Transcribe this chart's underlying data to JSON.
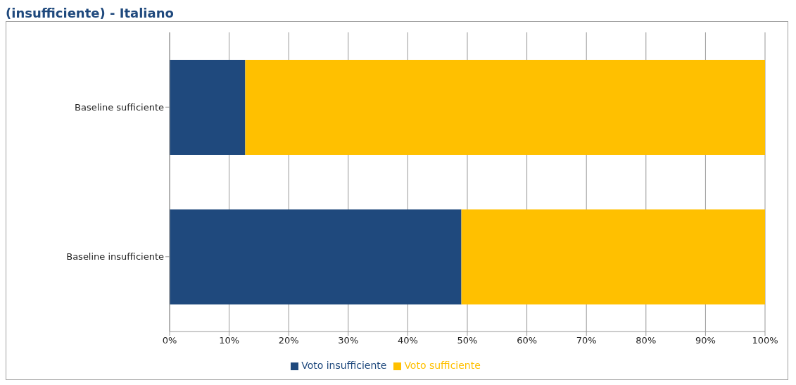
{
  "chart_data": {
    "type": "bar",
    "title": "(insufficiente) - Italiano",
    "orientation": "horizontal",
    "stacked": true,
    "categories": [
      "Baseline sufficiente",
      "Baseline insufficiente"
    ],
    "series": [
      {
        "name": "Voto insufficiente",
        "color": "#1f497d",
        "values": [
          12.7,
          49
        ]
      },
      {
        "name": "Voto sufficiente",
        "color": "#ffc000",
        "values": [
          87.3,
          51
        ]
      }
    ],
    "xlim": [
      0,
      100
    ],
    "xticks": [
      {
        "value": 0,
        "label": "0%"
      },
      {
        "value": 10,
        "label": "10%"
      },
      {
        "value": 20,
        "label": "20%"
      },
      {
        "value": 30,
        "label": "30%"
      },
      {
        "value": 40,
        "label": "40%"
      },
      {
        "value": 50,
        "label": "50%"
      },
      {
        "value": 60,
        "label": "60%"
      },
      {
        "value": 70,
        "label": "70%"
      },
      {
        "value": 80,
        "label": "80%"
      },
      {
        "value": 90,
        "label": "90%"
      },
      {
        "value": 100,
        "label": "100%"
      }
    ],
    "grid": "x",
    "legend": "bottom"
  }
}
